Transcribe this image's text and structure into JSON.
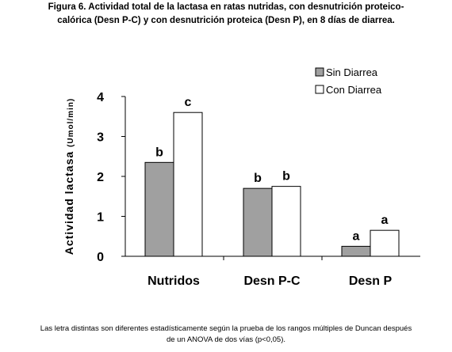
{
  "figure": {
    "title_line1": "Figura 6. Actividad total de la lactasa  en ratas nutridas, con desnutrición proteico-",
    "title_line2": "calórica (Desn P-C) y con desnutrición proteica (Desn P), en 8 días de diarrea.",
    "note_line1": "Las letra distintas son diferentes estadísticamente según la prueba de los rangos múltiples de Duncan después",
    "note_line2": "de un ANOVA de dos vías (p<0,05)."
  },
  "chart_data": {
    "type": "bar",
    "categories": [
      "Nutridos",
      "Desn P-C",
      "Desn P"
    ],
    "series": [
      {
        "name": "Sin Diarrea",
        "values": [
          2.35,
          1.7,
          0.25
        ],
        "letters": [
          "b",
          "b",
          "a"
        ],
        "color": "#a0a0a0"
      },
      {
        "name": "Con Diarrea",
        "values": [
          3.6,
          1.75,
          0.65
        ],
        "letters": [
          "c",
          "b",
          "a"
        ],
        "color": "#ffffff"
      }
    ],
    "xlabel": "",
    "ylabel": "Actividad lactasa",
    "ylabel_unit": "(Umol/min)",
    "ylim": [
      0,
      4
    ],
    "yticks": [
      "0",
      "1",
      "2",
      "3",
      "4"
    ],
    "grid": false,
    "legend_position": "top-right"
  }
}
